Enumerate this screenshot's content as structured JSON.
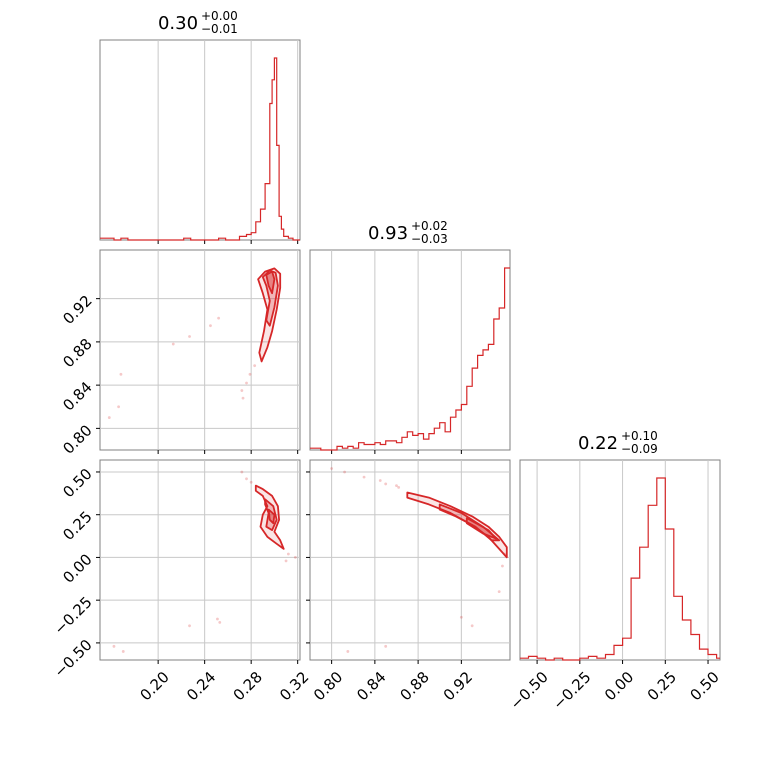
{
  "chart_data": {
    "type": "corner",
    "color": "#d62728",
    "grid": true,
    "parameters": [
      {
        "title": {
          "median": "0.30",
          "plus": "+0.00",
          "minus": "−0.01"
        }
      },
      {
        "title": {
          "median": "0.93",
          "plus": "+0.02",
          "minus": "−0.03"
        }
      },
      {
        "title": {
          "median": "0.22",
          "plus": "+0.10",
          "minus": "−0.09"
        }
      }
    ],
    "ranges": [
      [
        0.15,
        0.322
      ],
      [
        0.78,
        0.965
      ],
      [
        -0.6,
        0.57
      ]
    ],
    "ticks": [
      {
        "values": [
          0.2,
          0.24,
          0.28,
          0.32
        ],
        "labels": [
          "0.20",
          "0.24",
          "0.28",
          "0.32"
        ]
      },
      {
        "values": [
          0.8,
          0.84,
          0.88,
          0.92
        ],
        "labels": [
          "0.80",
          "0.84",
          "0.88",
          "0.92"
        ]
      },
      {
        "values": [
          -0.5,
          -0.25,
          0.0,
          0.25,
          0.5
        ],
        "labels": [
          "−0.50",
          "−0.25",
          "0.00",
          "0.25",
          "0.50"
        ]
      }
    ],
    "histograms": [
      {
        "param": 0,
        "x": [
          0.15,
          0.156,
          0.162,
          0.168,
          0.174,
          0.18,
          0.186,
          0.192,
          0.198,
          0.204,
          0.21,
          0.216,
          0.222,
          0.228,
          0.234,
          0.24,
          0.246,
          0.252,
          0.258,
          0.264,
          0.27,
          0.276,
          0.28,
          0.284,
          0.288,
          0.292,
          0.296,
          0.298,
          0.3,
          0.302,
          0.304,
          0.306,
          0.308,
          0.312,
          0.316,
          0.32
        ],
        "values": [
          0.01,
          0.01,
          0.0,
          0.01,
          0.0,
          0.0,
          0.0,
          0.0,
          0.0,
          0.0,
          0.0,
          0.0,
          0.01,
          0.0,
          0.0,
          0.0,
          0.0,
          0.01,
          0.0,
          0.0,
          0.02,
          0.03,
          0.04,
          0.1,
          0.17,
          0.31,
          0.75,
          0.88,
          1.0,
          0.52,
          0.13,
          0.06,
          0.02,
          0.01,
          0.0,
          0.0
        ]
      },
      {
        "param": 1,
        "x": [
          0.78,
          0.785,
          0.79,
          0.795,
          0.8,
          0.805,
          0.81,
          0.815,
          0.82,
          0.825,
          0.83,
          0.835,
          0.84,
          0.845,
          0.85,
          0.855,
          0.86,
          0.865,
          0.87,
          0.875,
          0.88,
          0.885,
          0.89,
          0.895,
          0.9,
          0.905,
          0.91,
          0.915,
          0.92,
          0.925,
          0.93,
          0.935,
          0.94,
          0.945,
          0.95,
          0.955,
          0.96
        ],
        "values": [
          0.01,
          0.01,
          0.0,
          0.0,
          0.0,
          0.02,
          0.01,
          0.02,
          0.01,
          0.04,
          0.03,
          0.03,
          0.04,
          0.03,
          0.05,
          0.05,
          0.04,
          0.07,
          0.1,
          0.08,
          0.09,
          0.06,
          0.09,
          0.12,
          0.15,
          0.1,
          0.18,
          0.22,
          0.25,
          0.35,
          0.45,
          0.52,
          0.55,
          0.58,
          0.72,
          0.78,
          1.0
        ]
      },
      {
        "param": 2,
        "x": [
          -0.6,
          -0.55,
          -0.5,
          -0.45,
          -0.4,
          -0.35,
          -0.3,
          -0.25,
          -0.2,
          -0.15,
          -0.1,
          -0.05,
          0.0,
          0.05,
          0.1,
          0.15,
          0.2,
          0.25,
          0.3,
          0.35,
          0.4,
          0.45,
          0.5,
          0.55
        ],
        "values": [
          0.01,
          0.02,
          0.01,
          0.0,
          0.01,
          0.0,
          0.0,
          0.01,
          0.02,
          0.01,
          0.03,
          0.08,
          0.12,
          0.45,
          0.62,
          0.85,
          1.0,
          0.72,
          0.35,
          0.22,
          0.14,
          0.06,
          0.03,
          0.01
        ]
      }
    ],
    "contours": [
      {
        "px": 0,
        "py": 1,
        "levels": [
          [
            [
              0.286,
              0.938
            ],
            [
              0.292,
              0.945
            ],
            [
              0.3,
              0.948
            ],
            [
              0.305,
              0.943
            ],
            [
              0.305,
              0.93
            ],
            [
              0.302,
              0.91
            ],
            [
              0.298,
              0.89
            ],
            [
              0.294,
              0.875
            ],
            [
              0.289,
              0.862
            ],
            [
              0.287,
              0.87
            ],
            [
              0.291,
              0.89
            ],
            [
              0.294,
              0.91
            ],
            [
              0.29,
              0.925
            ]
          ],
          [
            [
              0.29,
              0.94
            ],
            [
              0.296,
              0.946
            ],
            [
              0.301,
              0.944
            ],
            [
              0.303,
              0.932
            ],
            [
              0.3,
              0.912
            ],
            [
              0.296,
              0.895
            ],
            [
              0.293,
              0.9
            ],
            [
              0.296,
              0.918
            ],
            [
              0.293,
              0.932
            ]
          ],
          [
            [
              0.293,
              0.942
            ],
            [
              0.298,
              0.945
            ],
            [
              0.3,
              0.938
            ],
            [
              0.298,
              0.925
            ],
            [
              0.295,
              0.932
            ]
          ]
        ]
      },
      {
        "px": 0,
        "py": 2,
        "levels": [
          [
            [
              0.284,
              0.42
            ],
            [
              0.29,
              0.4
            ],
            [
              0.298,
              0.36
            ],
            [
              0.303,
              0.3
            ],
            [
              0.304,
              0.22
            ],
            [
              0.3,
              0.15
            ],
            [
              0.305,
              0.1
            ],
            [
              0.308,
              0.05
            ],
            [
              0.302,
              0.08
            ],
            [
              0.294,
              0.12
            ],
            [
              0.288,
              0.18
            ],
            [
              0.29,
              0.25
            ],
            [
              0.294,
              0.3
            ],
            [
              0.29,
              0.36
            ],
            [
              0.284,
              0.39
            ]
          ],
          [
            [
              0.292,
              0.34
            ],
            [
              0.299,
              0.3
            ],
            [
              0.302,
              0.22
            ],
            [
              0.298,
              0.16
            ],
            [
              0.293,
              0.18
            ],
            [
              0.295,
              0.26
            ],
            [
              0.292,
              0.31
            ]
          ],
          [
            [
              0.295,
              0.28
            ],
            [
              0.3,
              0.25
            ],
            [
              0.299,
              0.2
            ],
            [
              0.296,
              0.22
            ]
          ]
        ]
      },
      {
        "px": 1,
        "py": 2,
        "levels": [
          [
            [
              0.87,
              0.38
            ],
            [
              0.89,
              0.35
            ],
            [
              0.91,
              0.3
            ],
            [
              0.93,
              0.24
            ],
            [
              0.945,
              0.18
            ],
            [
              0.955,
              0.12
            ],
            [
              0.962,
              0.06
            ],
            [
              0.962,
              0.0
            ],
            [
              0.955,
              0.05
            ],
            [
              0.945,
              0.12
            ],
            [
              0.93,
              0.19
            ],
            [
              0.91,
              0.26
            ],
            [
              0.89,
              0.31
            ],
            [
              0.87,
              0.35
            ]
          ],
          [
            [
              0.9,
              0.31
            ],
            [
              0.92,
              0.26
            ],
            [
              0.94,
              0.18
            ],
            [
              0.955,
              0.1
            ],
            [
              0.948,
              0.1
            ],
            [
              0.933,
              0.18
            ],
            [
              0.915,
              0.24
            ],
            [
              0.9,
              0.28
            ]
          ],
          [
            [
              0.925,
              0.23
            ],
            [
              0.945,
              0.16
            ],
            [
              0.952,
              0.11
            ],
            [
              0.94,
              0.14
            ],
            [
              0.925,
              0.2
            ]
          ]
        ]
      }
    ],
    "samples": [
      {
        "px": 0,
        "py": 1,
        "points": [
          [
            0.158,
            0.81
          ],
          [
            0.168,
            0.85
          ],
          [
            0.166,
            0.82
          ],
          [
            0.213,
            0.878
          ],
          [
            0.227,
            0.885
          ],
          [
            0.245,
            0.895
          ],
          [
            0.252,
            0.902
          ],
          [
            0.272,
            0.835
          ],
          [
            0.276,
            0.842
          ],
          [
            0.273,
            0.828
          ],
          [
            0.279,
            0.85
          ],
          [
            0.283,
            0.858
          ]
        ]
      },
      {
        "px": 0,
        "py": 2,
        "points": [
          [
            0.162,
            -0.52
          ],
          [
            0.17,
            -0.55
          ],
          [
            0.227,
            -0.4
          ],
          [
            0.251,
            -0.36
          ],
          [
            0.253,
            -0.38
          ],
          [
            0.272,
            0.5
          ],
          [
            0.276,
            0.46
          ],
          [
            0.28,
            0.44
          ],
          [
            0.31,
            -0.02
          ],
          [
            0.318,
            0.0
          ],
          [
            0.312,
            0.02
          ]
        ]
      },
      {
        "px": 1,
        "py": 2,
        "points": [
          [
            0.8,
            0.52
          ],
          [
            0.812,
            0.5
          ],
          [
            0.83,
            0.47
          ],
          [
            0.845,
            0.45
          ],
          [
            0.85,
            0.43
          ],
          [
            0.86,
            0.42
          ],
          [
            0.862,
            0.41
          ],
          [
            0.815,
            -0.55
          ],
          [
            0.85,
            -0.52
          ],
          [
            0.92,
            -0.35
          ],
          [
            0.93,
            -0.4
          ],
          [
            0.955,
            -0.2
          ],
          [
            0.96,
            0.02
          ],
          [
            0.958,
            -0.05
          ]
        ]
      }
    ]
  }
}
